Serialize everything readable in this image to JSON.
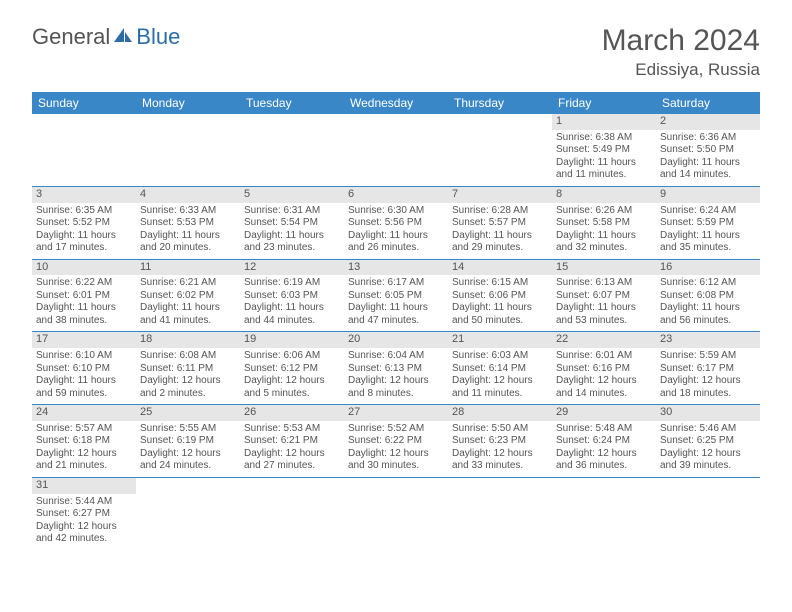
{
  "logo": {
    "part1": "General",
    "part2": "Blue"
  },
  "title": "March 2024",
  "location": "Edissiya, Russia",
  "colors": {
    "header_bg": "#3a87c8",
    "header_fg": "#ffffff",
    "daynum_bg": "#e6e6e6",
    "row_divider": "#3a87c8",
    "text": "#555555",
    "background": "#ffffff"
  },
  "weekdays": [
    "Sunday",
    "Monday",
    "Tuesday",
    "Wednesday",
    "Thursday",
    "Friday",
    "Saturday"
  ],
  "weeks": [
    [
      null,
      null,
      null,
      null,
      null,
      {
        "n": "1",
        "sr": "Sunrise: 6:38 AM",
        "ss": "Sunset: 5:49 PM",
        "d1": "Daylight: 11 hours",
        "d2": "and 11 minutes."
      },
      {
        "n": "2",
        "sr": "Sunrise: 6:36 AM",
        "ss": "Sunset: 5:50 PM",
        "d1": "Daylight: 11 hours",
        "d2": "and 14 minutes."
      }
    ],
    [
      {
        "n": "3",
        "sr": "Sunrise: 6:35 AM",
        "ss": "Sunset: 5:52 PM",
        "d1": "Daylight: 11 hours",
        "d2": "and 17 minutes."
      },
      {
        "n": "4",
        "sr": "Sunrise: 6:33 AM",
        "ss": "Sunset: 5:53 PM",
        "d1": "Daylight: 11 hours",
        "d2": "and 20 minutes."
      },
      {
        "n": "5",
        "sr": "Sunrise: 6:31 AM",
        "ss": "Sunset: 5:54 PM",
        "d1": "Daylight: 11 hours",
        "d2": "and 23 minutes."
      },
      {
        "n": "6",
        "sr": "Sunrise: 6:30 AM",
        "ss": "Sunset: 5:56 PM",
        "d1": "Daylight: 11 hours",
        "d2": "and 26 minutes."
      },
      {
        "n": "7",
        "sr": "Sunrise: 6:28 AM",
        "ss": "Sunset: 5:57 PM",
        "d1": "Daylight: 11 hours",
        "d2": "and 29 minutes."
      },
      {
        "n": "8",
        "sr": "Sunrise: 6:26 AM",
        "ss": "Sunset: 5:58 PM",
        "d1": "Daylight: 11 hours",
        "d2": "and 32 minutes."
      },
      {
        "n": "9",
        "sr": "Sunrise: 6:24 AM",
        "ss": "Sunset: 5:59 PM",
        "d1": "Daylight: 11 hours",
        "d2": "and 35 minutes."
      }
    ],
    [
      {
        "n": "10",
        "sr": "Sunrise: 6:22 AM",
        "ss": "Sunset: 6:01 PM",
        "d1": "Daylight: 11 hours",
        "d2": "and 38 minutes."
      },
      {
        "n": "11",
        "sr": "Sunrise: 6:21 AM",
        "ss": "Sunset: 6:02 PM",
        "d1": "Daylight: 11 hours",
        "d2": "and 41 minutes."
      },
      {
        "n": "12",
        "sr": "Sunrise: 6:19 AM",
        "ss": "Sunset: 6:03 PM",
        "d1": "Daylight: 11 hours",
        "d2": "and 44 minutes."
      },
      {
        "n": "13",
        "sr": "Sunrise: 6:17 AM",
        "ss": "Sunset: 6:05 PM",
        "d1": "Daylight: 11 hours",
        "d2": "and 47 minutes."
      },
      {
        "n": "14",
        "sr": "Sunrise: 6:15 AM",
        "ss": "Sunset: 6:06 PM",
        "d1": "Daylight: 11 hours",
        "d2": "and 50 minutes."
      },
      {
        "n": "15",
        "sr": "Sunrise: 6:13 AM",
        "ss": "Sunset: 6:07 PM",
        "d1": "Daylight: 11 hours",
        "d2": "and 53 minutes."
      },
      {
        "n": "16",
        "sr": "Sunrise: 6:12 AM",
        "ss": "Sunset: 6:08 PM",
        "d1": "Daylight: 11 hours",
        "d2": "and 56 minutes."
      }
    ],
    [
      {
        "n": "17",
        "sr": "Sunrise: 6:10 AM",
        "ss": "Sunset: 6:10 PM",
        "d1": "Daylight: 11 hours",
        "d2": "and 59 minutes."
      },
      {
        "n": "18",
        "sr": "Sunrise: 6:08 AM",
        "ss": "Sunset: 6:11 PM",
        "d1": "Daylight: 12 hours",
        "d2": "and 2 minutes."
      },
      {
        "n": "19",
        "sr": "Sunrise: 6:06 AM",
        "ss": "Sunset: 6:12 PM",
        "d1": "Daylight: 12 hours",
        "d2": "and 5 minutes."
      },
      {
        "n": "20",
        "sr": "Sunrise: 6:04 AM",
        "ss": "Sunset: 6:13 PM",
        "d1": "Daylight: 12 hours",
        "d2": "and 8 minutes."
      },
      {
        "n": "21",
        "sr": "Sunrise: 6:03 AM",
        "ss": "Sunset: 6:14 PM",
        "d1": "Daylight: 12 hours",
        "d2": "and 11 minutes."
      },
      {
        "n": "22",
        "sr": "Sunrise: 6:01 AM",
        "ss": "Sunset: 6:16 PM",
        "d1": "Daylight: 12 hours",
        "d2": "and 14 minutes."
      },
      {
        "n": "23",
        "sr": "Sunrise: 5:59 AM",
        "ss": "Sunset: 6:17 PM",
        "d1": "Daylight: 12 hours",
        "d2": "and 18 minutes."
      }
    ],
    [
      {
        "n": "24",
        "sr": "Sunrise: 5:57 AM",
        "ss": "Sunset: 6:18 PM",
        "d1": "Daylight: 12 hours",
        "d2": "and 21 minutes."
      },
      {
        "n": "25",
        "sr": "Sunrise: 5:55 AM",
        "ss": "Sunset: 6:19 PM",
        "d1": "Daylight: 12 hours",
        "d2": "and 24 minutes."
      },
      {
        "n": "26",
        "sr": "Sunrise: 5:53 AM",
        "ss": "Sunset: 6:21 PM",
        "d1": "Daylight: 12 hours",
        "d2": "and 27 minutes."
      },
      {
        "n": "27",
        "sr": "Sunrise: 5:52 AM",
        "ss": "Sunset: 6:22 PM",
        "d1": "Daylight: 12 hours",
        "d2": "and 30 minutes."
      },
      {
        "n": "28",
        "sr": "Sunrise: 5:50 AM",
        "ss": "Sunset: 6:23 PM",
        "d1": "Daylight: 12 hours",
        "d2": "and 33 minutes."
      },
      {
        "n": "29",
        "sr": "Sunrise: 5:48 AM",
        "ss": "Sunset: 6:24 PM",
        "d1": "Daylight: 12 hours",
        "d2": "and 36 minutes."
      },
      {
        "n": "30",
        "sr": "Sunrise: 5:46 AM",
        "ss": "Sunset: 6:25 PM",
        "d1": "Daylight: 12 hours",
        "d2": "and 39 minutes."
      }
    ],
    [
      {
        "n": "31",
        "sr": "Sunrise: 5:44 AM",
        "ss": "Sunset: 6:27 PM",
        "d1": "Daylight: 12 hours",
        "d2": "and 42 minutes."
      },
      null,
      null,
      null,
      null,
      null,
      null
    ]
  ]
}
